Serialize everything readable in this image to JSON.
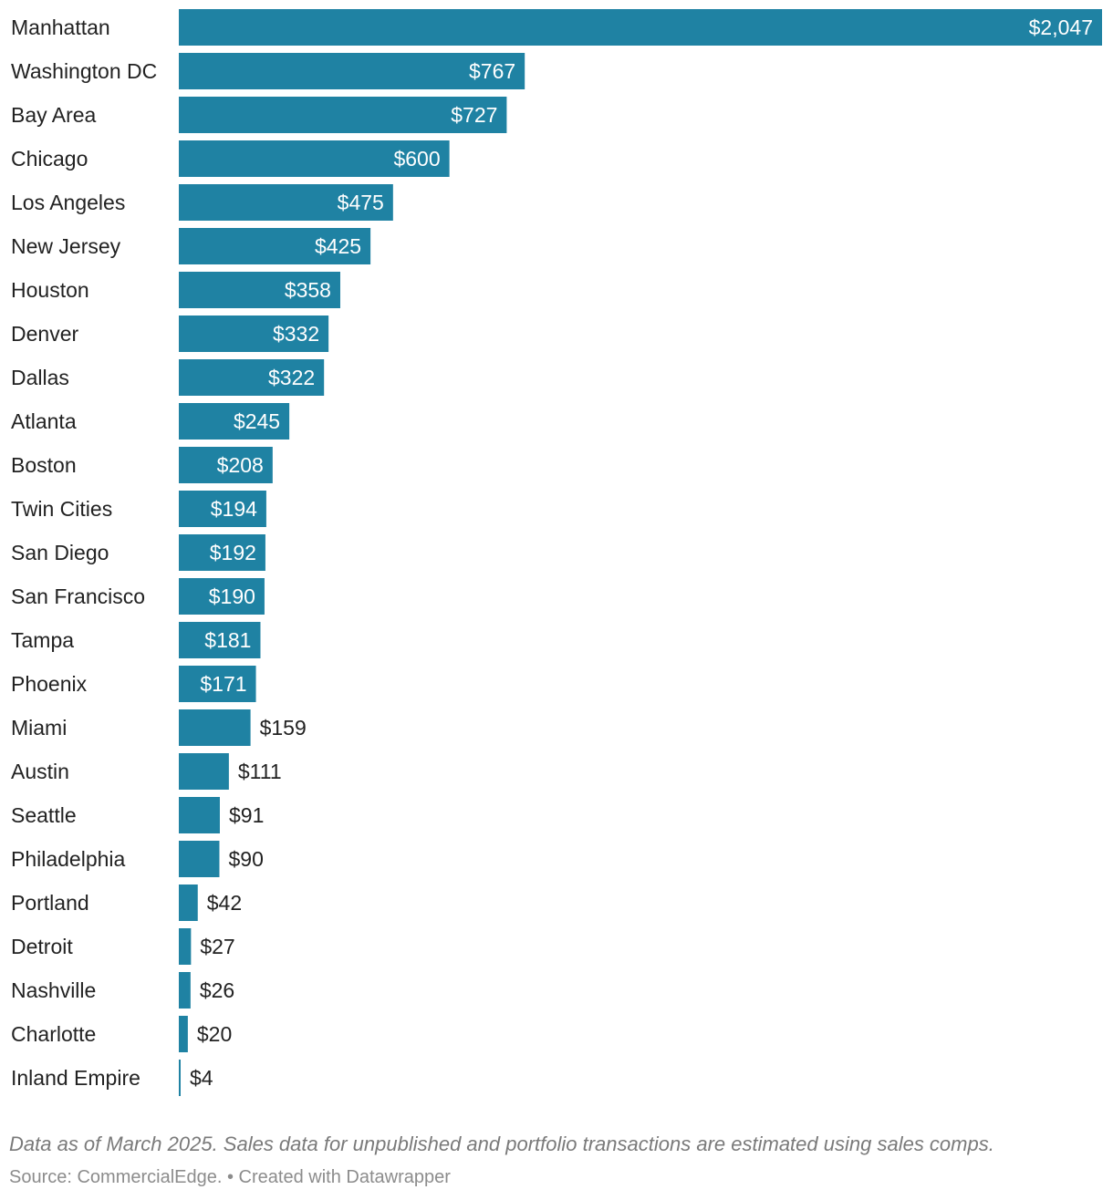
{
  "chart_data": {
    "type": "bar",
    "orientation": "horizontal",
    "categories": [
      "Manhattan",
      "Washington DC",
      "Bay Area",
      "Chicago",
      "Los Angeles",
      "New Jersey",
      "Houston",
      "Denver",
      "Dallas",
      "Atlanta",
      "Boston",
      "Twin Cities",
      "San Diego",
      "San Francisco",
      "Tampa",
      "Phoenix",
      "Miami",
      "Austin",
      "Seattle",
      "Philadelphia",
      "Portland",
      "Detroit",
      "Nashville",
      "Charlotte",
      "Inland Empire"
    ],
    "values": [
      2047,
      767,
      727,
      600,
      475,
      425,
      358,
      332,
      322,
      245,
      208,
      194,
      192,
      190,
      181,
      171,
      159,
      111,
      91,
      90,
      42,
      27,
      26,
      20,
      4
    ],
    "value_labels": [
      "$2,047",
      "$767",
      "$727",
      "$600",
      "$475",
      "$425",
      "$358",
      "$332",
      "$322",
      "$245",
      "$208",
      "$194",
      "$192",
      "$190",
      "$181",
      "$171",
      "$159",
      "$111",
      "$91",
      "$90",
      "$42",
      "$27",
      "$26",
      "$20",
      "$4"
    ],
    "xlim": [
      0,
      2047
    ],
    "grid": false,
    "bar_color": "#1f82a3",
    "inside_label_color": "#ffffff",
    "outside_label_color": "#222222"
  },
  "notes": {
    "description": "Data as of March 2025. Sales data for unpublished and portfolio transactions are estimated using sales comps.",
    "source": "Source: CommercialEdge. • Created with Datawrapper"
  }
}
